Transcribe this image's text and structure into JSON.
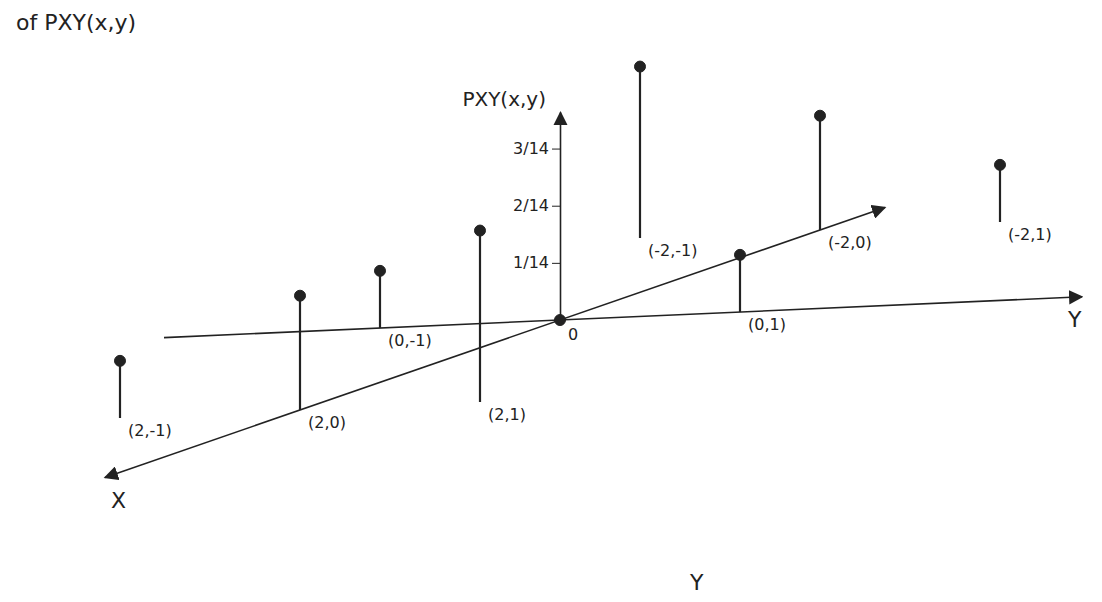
{
  "chart_data": {
    "type": "stem3d",
    "title": "of PXY(x,y)",
    "xlabel": "X",
    "ylabel": "Y",
    "zlabel": "PXY(x,y)",
    "origin_label": "0",
    "annotations": [
      "Y"
    ],
    "x": [
      -2,
      -2,
      -2,
      0,
      0,
      0,
      2,
      2,
      2
    ],
    "y": [
      -1,
      0,
      1,
      -1,
      0,
      1,
      -1,
      0,
      1
    ],
    "values": [
      0.2142857,
      0.1428571,
      0.0714286,
      0.0714286,
      0,
      0.0714286,
      0.0714286,
      0.1428571,
      0.2142857
    ],
    "point_labels": [
      "(-2,-1)",
      "(-2,0)",
      "(-2,1)",
      "(0,-1)",
      null,
      "(0,1)",
      "(2,-1)",
      "(2,0)",
      "(2,1)"
    ],
    "xlim": [
      -2.5,
      3.5
    ],
    "ylim": [
      -2.2,
      2.9
    ],
    "zlim": [
      0,
      0.26
    ],
    "zticks": [
      {
        "value": 0.0714286,
        "label": "1/14"
      },
      {
        "value": 0.1428571,
        "label": "2/14"
      },
      {
        "value": 0.2142857,
        "label": "3/14"
      }
    ],
    "color": "#222222",
    "marker": "circle"
  }
}
